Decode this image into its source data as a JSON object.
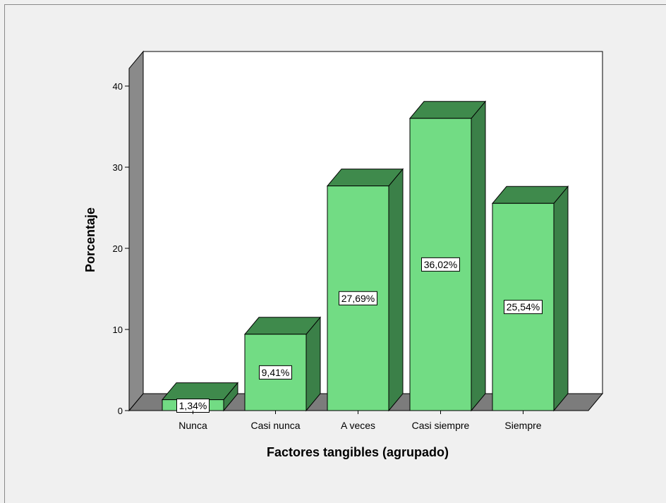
{
  "chart_data": {
    "type": "bar",
    "style": "3d",
    "categories": [
      "Nunca",
      "Casi nunca",
      "A veces",
      "Casi siempre",
      "Siempre"
    ],
    "values": [
      1.34,
      9.41,
      27.69,
      36.02,
      25.54
    ],
    "value_labels": [
      "1,34%",
      "9,41%",
      "27,69%",
      "36,02%",
      "25,54%"
    ],
    "title": "",
    "xlabel": "Factores tangibles (agrupado)",
    "ylabel": "Porcentaje",
    "ylim": [
      0,
      40
    ],
    "yticks": [
      0,
      10,
      20,
      30,
      40
    ],
    "grid": false,
    "legend": "none"
  },
  "colors": {
    "background": "#f0f0f0",
    "plot_background": "#ffffff",
    "bar_front": "#72dc84",
    "bar_side": "#3b8048",
    "bar_top": "#3f8a4c",
    "wall_side": "#8a8a8a",
    "floor": "#7c7c7c"
  }
}
